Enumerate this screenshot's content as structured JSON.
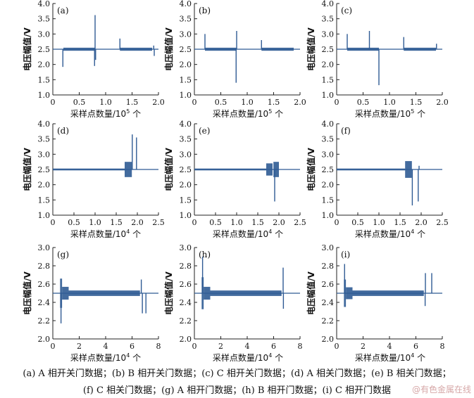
{
  "chart_data": [
    {
      "id": "a",
      "panel_label": "(a)",
      "type": "line",
      "signal": "A",
      "event": "open-close",
      "ylabel": "电压幅值/V",
      "xlabel_prefix": "采样点数量/10",
      "xlabel_exp": "5",
      "xlabel_suffix": " 个",
      "xlim": [
        0,
        2.0
      ],
      "ylim": [
        1.0,
        4.0
      ],
      "xticks": [
        "0",
        "0.5",
        "1.0",
        "1.5",
        "2.0"
      ],
      "yticks": [
        "1.0",
        "1.5",
        "2.0",
        "2.5",
        "3.0",
        "3.5",
        "4.0"
      ],
      "baseline": 2.5,
      "bursts": [
        [
          0.2,
          0.8,
          0.1
        ],
        [
          1.27,
          1.88,
          0.1
        ]
      ],
      "spikes": [
        [
          0.19,
          1.92
        ],
        [
          0.79,
          1.95
        ],
        [
          0.8,
          3.62
        ],
        [
          0.81,
          2.15
        ],
        [
          1.27,
          2.85
        ],
        [
          1.91,
          2.62
        ],
        [
          1.92,
          2.28
        ]
      ]
    },
    {
      "id": "b",
      "panel_label": "(b)",
      "type": "line",
      "signal": "B",
      "event": "open-close",
      "ylabel": "电压幅值/V",
      "xlabel_prefix": "采样点数量/10",
      "xlabel_exp": "5",
      "xlabel_suffix": " 个",
      "xlim": [
        0,
        2.0
      ],
      "ylim": [
        1.0,
        4.0
      ],
      "xticks": [
        "0",
        "0.5",
        "1.0",
        "1.5",
        "2.0"
      ],
      "yticks": [
        "1.0",
        "1.5",
        "2.0",
        "2.5",
        "3.0",
        "3.5",
        "4.0"
      ],
      "baseline": 2.5,
      "bursts": [
        [
          0.2,
          0.8,
          0.1
        ],
        [
          1.27,
          1.88,
          0.1
        ]
      ],
      "spikes": [
        [
          0.2,
          3.0
        ],
        [
          0.79,
          1.4
        ],
        [
          0.8,
          3.1
        ],
        [
          1.27,
          2.8
        ]
      ]
    },
    {
      "id": "c",
      "panel_label": "(c)",
      "type": "line",
      "signal": "C",
      "event": "open-close",
      "ylabel": "电压幅值/V",
      "xlabel_prefix": "采样点数量/10",
      "xlabel_exp": "5",
      "xlabel_suffix": " 个",
      "xlim": [
        0,
        2.0
      ],
      "ylim": [
        1.0,
        4.0
      ],
      "xticks": [
        "0",
        "0.5",
        "1.0",
        "1.5",
        "2.0"
      ],
      "yticks": [
        "1.0",
        "1.5",
        "2.0",
        "2.5",
        "3.0",
        "3.5",
        "4.0"
      ],
      "baseline": 2.5,
      "bursts": [
        [
          0.2,
          0.8,
          0.1
        ],
        [
          1.27,
          1.88,
          0.1
        ]
      ],
      "spikes": [
        [
          0.2,
          3.0
        ],
        [
          0.62,
          3.1
        ],
        [
          0.8,
          1.32
        ],
        [
          1.27,
          2.9
        ],
        [
          1.89,
          2.68
        ]
      ]
    },
    {
      "id": "d",
      "panel_label": "(d)",
      "type": "line",
      "signal": "A",
      "event": "close",
      "ylabel": "电压幅值/V",
      "xlabel_prefix": "采样点数量/10",
      "xlabel_exp": "4",
      "xlabel_suffix": " 个",
      "xlim": [
        0,
        2.5
      ],
      "ylim": [
        1.0,
        4.0
      ],
      "xticks": [
        "0",
        "0.5",
        "1.0",
        "1.5",
        "2.0",
        "2.5"
      ],
      "yticks": [
        "1.0",
        "1.5",
        "2.0",
        "2.5",
        "3.0",
        "3.5",
        "4.0"
      ],
      "baseline": 2.5,
      "bursts": [
        [
          0.0,
          1.7,
          0.06
        ],
        [
          1.7,
          1.87,
          0.5
        ]
      ],
      "spikes": [
        [
          1.88,
          3.65
        ],
        [
          1.98,
          3.55
        ],
        [
          2.0,
          2.5
        ]
      ]
    },
    {
      "id": "e",
      "panel_label": "(e)",
      "type": "line",
      "signal": "B",
      "event": "close",
      "ylabel": "电压幅值/V",
      "xlabel_prefix": "采样点数量/10",
      "xlabel_exp": "4",
      "xlabel_suffix": " 个",
      "xlim": [
        0,
        2.5
      ],
      "ylim": [
        1.0,
        4.0
      ],
      "xticks": [
        "0",
        "0.5",
        "1.0",
        "1.5",
        "2.0",
        "2.5"
      ],
      "yticks": [
        "1.0",
        "1.5",
        "2.0",
        "2.5",
        "3.0",
        "3.5",
        "4.0"
      ],
      "baseline": 2.5,
      "bursts": [
        [
          0.0,
          1.7,
          0.06
        ],
        [
          1.7,
          1.85,
          0.4
        ],
        [
          1.87,
          2.0,
          0.5
        ]
      ],
      "spikes": [
        [
          1.9,
          1.45
        ],
        [
          2.0,
          2.5
        ]
      ]
    },
    {
      "id": "f",
      "panel_label": "(f)",
      "type": "line",
      "signal": "C",
      "event": "close",
      "ylabel": "电压幅值/V",
      "xlabel_prefix": "采样点数量/10",
      "xlabel_exp": "4",
      "xlabel_suffix": " 个",
      "xlim": [
        0,
        2.5
      ],
      "ylim": [
        1.0,
        4.0
      ],
      "xticks": [
        "0",
        "0.5",
        "1.0",
        "1.5",
        "2.0",
        "2.5"
      ],
      "yticks": [
        "1.0",
        "1.5",
        "2.0",
        "2.5",
        "3.0",
        "3.5",
        "4.0"
      ],
      "baseline": 2.5,
      "bursts": [
        [
          0.0,
          1.62,
          0.06
        ],
        [
          1.62,
          1.78,
          0.55
        ]
      ],
      "spikes": [
        [
          1.79,
          1.32
        ],
        [
          1.93,
          1.45
        ],
        [
          1.95,
          2.62
        ],
        [
          1.97,
          2.5
        ]
      ]
    },
    {
      "id": "g",
      "panel_label": "(g)",
      "type": "line",
      "signal": "A",
      "event": "open",
      "ylabel": "电压幅值/V",
      "xlabel_prefix": "采样点数量/10",
      "xlabel_exp": "4",
      "xlabel_suffix": " 个",
      "xlim": [
        0,
        8
      ],
      "ylim": [
        2.0,
        3.0
      ],
      "xticks": [
        "0",
        "2",
        "4",
        "6",
        "8"
      ],
      "yticks": [
        "2.0",
        "2.2",
        "2.4",
        "2.6",
        "2.8",
        "3.0"
      ],
      "baseline": 2.5,
      "bursts": [
        [
          0.55,
          0.7,
          0.32
        ],
        [
          0.7,
          1.2,
          0.14
        ],
        [
          1.2,
          6.6,
          0.06
        ]
      ],
      "spikes": [
        [
          0.62,
          2.17
        ],
        [
          6.7,
          2.65
        ],
        [
          6.78,
          2.28
        ],
        [
          7.05,
          2.28
        ],
        [
          7.1,
          2.5
        ]
      ]
    },
    {
      "id": "h",
      "panel_label": "(h)",
      "type": "line",
      "signal": "B",
      "event": "open",
      "ylabel": "电压幅值/V",
      "xlabel_prefix": "采样点数量/10",
      "xlabel_exp": "4",
      "xlabel_suffix": " 个",
      "xlim": [
        0,
        8
      ],
      "ylim": [
        2.0,
        3.0
      ],
      "xticks": [
        "0",
        "2",
        "4",
        "6",
        "8"
      ],
      "yticks": [
        "2.0",
        "2.2",
        "2.4",
        "2.6",
        "2.8",
        "3.0"
      ],
      "baseline": 2.5,
      "bursts": [
        [
          0.55,
          0.7,
          0.35
        ],
        [
          0.7,
          1.2,
          0.14
        ],
        [
          1.2,
          6.6,
          0.06
        ]
      ],
      "spikes": [
        [
          0.62,
          2.9
        ],
        [
          6.72,
          2.78
        ],
        [
          6.74,
          2.33
        ]
      ]
    },
    {
      "id": "i",
      "panel_label": "(i)",
      "type": "line",
      "signal": "C",
      "event": "open",
      "ylabel": "电压幅值/V",
      "xlabel_prefix": "采样点数量/10",
      "xlabel_exp": "4",
      "xlabel_suffix": " 个",
      "xlim": [
        0,
        8
      ],
      "ylim": [
        2.0,
        3.0
      ],
      "xticks": [
        "0",
        "2",
        "4",
        "6",
        "8"
      ],
      "yticks": [
        "2.0",
        "2.2",
        "2.4",
        "2.6",
        "2.8",
        "3.0"
      ],
      "baseline": 2.5,
      "bursts": [
        [
          0.55,
          0.7,
          0.3
        ],
        [
          0.7,
          1.2,
          0.13
        ],
        [
          1.2,
          6.6,
          0.06
        ]
      ],
      "spikes": [
        [
          0.6,
          2.82
        ],
        [
          6.7,
          2.36
        ],
        [
          6.72,
          2.72
        ],
        [
          7.2,
          2.72
        ],
        [
          7.3,
          2.5
        ]
      ]
    }
  ],
  "colors": {
    "line": "#2f5b94",
    "axis": "#222222",
    "text": "#111111"
  },
  "caption": {
    "line1": "(a) A 相开关门数据；(b) B 相开关门数据；(c) C 相开关门数据；(d) A 相关门数据；(e) B 相关门数据；",
    "line2": "(f) C 相关门数据；(g) A 相开门数据；(h) B 相开门数据；(i) C 相开门数据"
  },
  "watermark": "@有色金属在线"
}
